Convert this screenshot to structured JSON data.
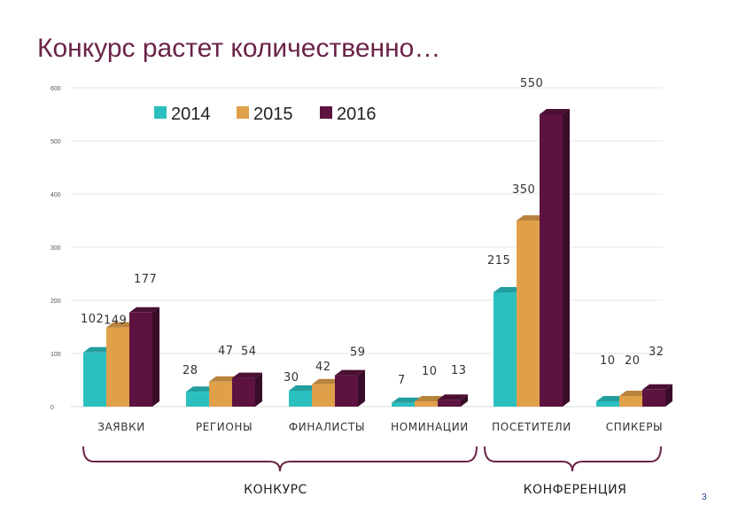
{
  "slide": {
    "title": "Конкурс растет количественно…",
    "number": "3"
  },
  "chart_data": {
    "type": "bar",
    "categories": [
      "ЗАЯВКИ",
      "РЕГИОНЫ",
      "ФИНАЛИСТЫ",
      "НОМИНАЦИИ",
      "ПОСЕТИТЕЛИ",
      "СПИКЕРЫ"
    ],
    "series": [
      {
        "name": "2014",
        "color": "#2bbfbf",
        "values": [
          102,
          28,
          30,
          7,
          215,
          10
        ]
      },
      {
        "name": "2015",
        "color": "#e0a04a",
        "values": [
          149,
          47,
          42,
          10,
          350,
          20
        ]
      },
      {
        "name": "2016",
        "color": "#5c1340",
        "values": [
          177,
          54,
          59,
          13,
          550,
          32
        ]
      }
    ],
    "ylim": [
      0,
      600
    ],
    "yticks": [
      "0",
      "100",
      "200",
      "300",
      "400",
      "500",
      "600"
    ],
    "grid": true,
    "legend_position": "top",
    "groups": [
      {
        "label": "КОНКУРС",
        "categories": [
          "ЗАЯВКИ",
          "РЕГИОНЫ",
          "ФИНАЛИСТЫ",
          "НОМИНАЦИИ"
        ]
      },
      {
        "label": "КОНФЕРЕНЦИЯ",
        "categories": [
          "ПОСЕТИТЕЛИ",
          "СПИКЕРЫ"
        ]
      }
    ],
    "brace_color": "#6b2347"
  }
}
